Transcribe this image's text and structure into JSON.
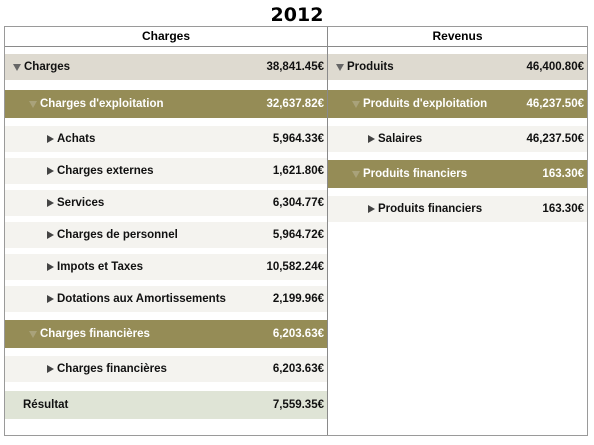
{
  "title": "2012",
  "charges": {
    "header": "Charges",
    "total": {
      "label": "Charges",
      "amount": "38,841.45€"
    },
    "exploitation": {
      "label": "Charges d'exploitation",
      "amount": "32,637.82€"
    },
    "items": [
      {
        "label": "Achats",
        "amount": "5,964.33€"
      },
      {
        "label": "Charges externes",
        "amount": "1,621.80€"
      },
      {
        "label": "Services",
        "amount": "6,304.77€"
      },
      {
        "label": "Charges de personnel",
        "amount": "5,964.72€"
      },
      {
        "label": "Impots et Taxes",
        "amount": "10,582.24€"
      },
      {
        "label": "Dotations aux Amortissements",
        "amount": "2,199.96€"
      }
    ],
    "financieres": {
      "label": "Charges financières",
      "amount": "6,203.63€"
    },
    "financieres_item": {
      "label": "Charges financières",
      "amount": "6,203.63€"
    },
    "resultat": {
      "label": "Résultat",
      "amount": "7,559.35€"
    }
  },
  "revenus": {
    "header": "Revenus",
    "total": {
      "label": "Produits",
      "amount": "46,400.80€"
    },
    "exploitation": {
      "label": "Produits d'exploitation",
      "amount": "46,237.50€"
    },
    "salaires": {
      "label": "Salaires",
      "amount": "46,237.50€"
    },
    "financiers": {
      "label": "Produits financiers",
      "amount": "163.30€"
    },
    "financiers_item": {
      "label": "Produits financiers",
      "amount": "163.30€"
    }
  }
}
